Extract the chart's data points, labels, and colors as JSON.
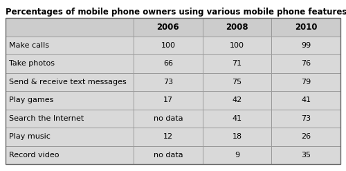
{
  "title": "Percentages of mobile phone owners using various mobile phone features",
  "columns": [
    "",
    "2006",
    "2008",
    "2010"
  ],
  "rows": [
    [
      "Make calls",
      "100",
      "100",
      "99"
    ],
    [
      "Take photos",
      "66",
      "71",
      "76"
    ],
    [
      "Send & receive text messages",
      "73",
      "75",
      "79"
    ],
    [
      "Play games",
      "17",
      "42",
      "41"
    ],
    [
      "Search the Internet",
      "no data",
      "41",
      "73"
    ],
    [
      "Play music",
      "12",
      "18",
      "26"
    ],
    [
      "Record video",
      "no data",
      "9",
      "35"
    ]
  ],
  "header_bg": "#cccccc",
  "row_bg": "#d9d9d9",
  "white_bg": "#ffffff",
  "border_color": "#999999",
  "title_fontsize": 8.5,
  "cell_fontsize": 8.0,
  "header_fontsize": 8.5,
  "fig_width": 5.0,
  "fig_height": 2.48,
  "dpi": 100
}
